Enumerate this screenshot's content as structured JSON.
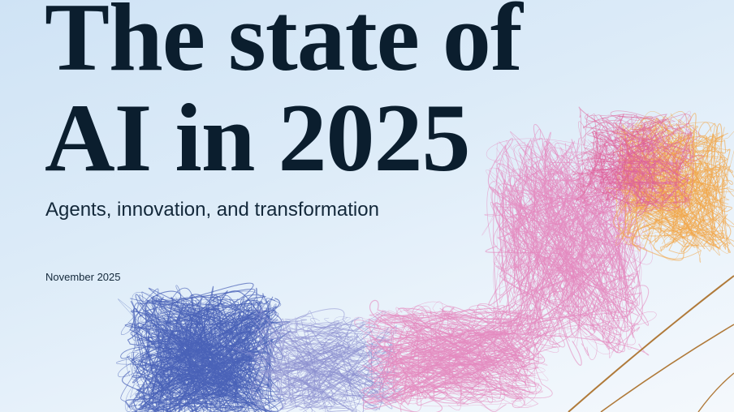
{
  "cover": {
    "title_line1": "The state of",
    "title_line2": "AI in 2025",
    "subtitle": "Agents, innovation, and transformation",
    "date": "November 2025"
  },
  "colors": {
    "background": "#dcebf8",
    "title": "#0b1e2e",
    "strand_blue": "#4a63b8",
    "strand_pink": "#e58ac0",
    "strand_orange": "#f2a64a",
    "stem": "#b07a3a"
  }
}
